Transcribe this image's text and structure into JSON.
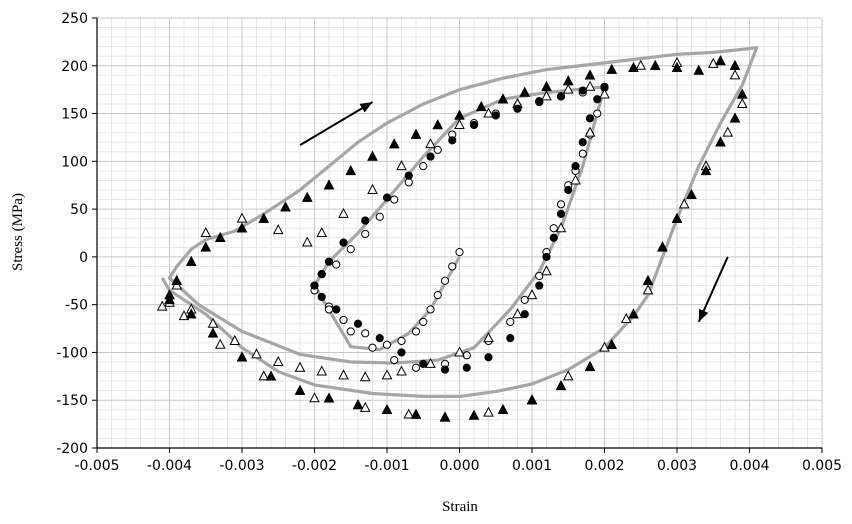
{
  "chart_data": {
    "type": "scatter",
    "title": "",
    "xlabel": "Strain",
    "ylabel": "Stress (MPa)",
    "xlim": [
      -0.005,
      0.005
    ],
    "ylim": [
      -200,
      250
    ],
    "xticks": [
      -0.005,
      -0.004,
      -0.003,
      -0.002,
      -0.001,
      0.0,
      0.001,
      0.002,
      0.003,
      0.004,
      0.005
    ],
    "xtick_labels": [
      "-0.005",
      "-0.004",
      "-0.003",
      "-0.002",
      "-0.001",
      "0.000",
      "0.001",
      "0.002",
      "0.003",
      "0.004",
      "0.005"
    ],
    "yticks": [
      -200,
      -150,
      -100,
      -50,
      0,
      50,
      100,
      150,
      200,
      250
    ],
    "ytick_labels": [
      "-200",
      "-150",
      "-100",
      "-50",
      "0",
      "50",
      "100",
      "150",
      "200",
      "250"
    ],
    "grid": true,
    "legend": "none",
    "colors": {
      "model": "#a6a6a6",
      "marker": "#000000",
      "arrow": "#000000"
    },
    "series": [
      {
        "marker": "gray-line",
        "points": [
          [
            0.0,
            0.0
          ],
          [
            -0.0004,
            -55
          ],
          [
            -0.0007,
            -80
          ],
          [
            -0.0011,
            -97
          ],
          [
            -0.0015,
            -94
          ],
          [
            -0.002,
            -30
          ],
          [
            -0.0018,
            -5
          ],
          [
            -0.0014,
            25
          ],
          [
            -0.001,
            60
          ],
          [
            -0.0005,
            105
          ],
          [
            0.0,
            145
          ],
          [
            0.0006,
            165
          ],
          [
            0.0012,
            172
          ],
          [
            0.0016,
            175
          ],
          [
            0.002,
            178
          ],
          [
            0.0017,
            95
          ],
          [
            0.0014,
            30
          ],
          [
            0.0011,
            -15
          ],
          [
            0.0007,
            -55
          ],
          [
            0.0002,
            -95
          ],
          [
            -0.0003,
            -108
          ],
          [
            -0.0009,
            -111
          ],
          [
            -0.0015,
            -110
          ],
          [
            -0.0022,
            -102
          ],
          [
            -0.003,
            -78
          ],
          [
            -0.0036,
            -50
          ],
          [
            -0.004,
            -22
          ],
          [
            -0.0039,
            -10
          ],
          [
            -0.0037,
            8
          ],
          [
            -0.0035,
            18
          ],
          [
            -0.0031,
            27
          ],
          [
            -0.0027,
            45
          ],
          [
            -0.0022,
            70
          ],
          [
            -0.0018,
            95
          ],
          [
            -0.0014,
            120
          ],
          [
            -0.001,
            140
          ],
          [
            -0.0005,
            160
          ],
          [
            0.0,
            175
          ],
          [
            0.0006,
            187
          ],
          [
            0.0012,
            196
          ],
          [
            0.002,
            203
          ],
          [
            0.003,
            212
          ],
          [
            0.0035,
            214
          ],
          [
            0.004,
            218
          ],
          [
            0.0041,
            219
          ],
          [
            0.0039,
            180
          ],
          [
            0.0036,
            140
          ],
          [
            0.0033,
            95
          ],
          [
            0.003,
            40
          ],
          [
            0.0028,
            0
          ],
          [
            0.0026,
            -40
          ],
          [
            0.0024,
            -62
          ],
          [
            0.002,
            -95
          ],
          [
            0.0015,
            -118
          ],
          [
            0.001,
            -133
          ],
          [
            0.0005,
            -141
          ],
          [
            0.0,
            -146
          ],
          [
            -0.0005,
            -146
          ],
          [
            -0.0012,
            -143
          ],
          [
            -0.002,
            -134
          ],
          [
            -0.0025,
            -120
          ],
          [
            -0.003,
            -95
          ],
          [
            -0.0035,
            -60
          ],
          [
            -0.004,
            -35
          ],
          [
            -0.0041,
            -22
          ]
        ]
      },
      {
        "marker": "open-circle",
        "points": [
          [
            0.0,
            5
          ],
          [
            -0.0001,
            -10
          ],
          [
            -0.0002,
            -25
          ],
          [
            -0.0003,
            -40
          ],
          [
            -0.0004,
            -55
          ],
          [
            -0.0005,
            -68
          ],
          [
            -0.0006,
            -78
          ],
          [
            -0.0008,
            -88
          ],
          [
            -0.001,
            -92
          ],
          [
            -0.0013,
            -80
          ],
          [
            -0.0016,
            -66
          ],
          [
            -0.0018,
            -52
          ],
          [
            -0.002,
            -30
          ],
          [
            -0.0019,
            -18
          ],
          [
            -0.0017,
            -8
          ],
          [
            -0.0015,
            8
          ],
          [
            -0.0013,
            24
          ],
          [
            -0.0011,
            42
          ],
          [
            -0.0009,
            60
          ],
          [
            -0.0007,
            78
          ],
          [
            -0.0005,
            95
          ],
          [
            -0.0003,
            112
          ],
          [
            -0.0001,
            128
          ],
          [
            0.0002,
            140
          ],
          [
            0.0005,
            150
          ],
          [
            0.0008,
            158
          ],
          [
            0.0011,
            163
          ],
          [
            0.0014,
            168
          ],
          [
            0.0017,
            172
          ],
          [
            0.002,
            177
          ],
          [
            0.0019,
            150
          ],
          [
            0.0018,
            128
          ],
          [
            0.0017,
            108
          ],
          [
            0.0016,
            90
          ],
          [
            0.0015,
            75
          ],
          [
            0.0014,
            55
          ],
          [
            0.0013,
            30
          ],
          [
            0.0012,
            5
          ],
          [
            0.0011,
            -20
          ],
          [
            0.0009,
            -45
          ],
          [
            0.0007,
            -68
          ],
          [
            0.0004,
            -88
          ],
          [
            0.0001,
            -103
          ],
          [
            -0.0002,
            -112
          ],
          [
            -0.0006,
            -116
          ],
          [
            -0.0009,
            -108
          ],
          [
            -0.0012,
            -95
          ],
          [
            -0.0015,
            -78
          ],
          [
            -0.0018,
            -55
          ],
          [
            -0.002,
            -35
          ]
        ]
      },
      {
        "marker": "open-triangle",
        "points": [
          [
            -0.004,
            -48
          ],
          [
            -0.0037,
            -55
          ],
          [
            -0.0034,
            -70
          ],
          [
            -0.0031,
            -88
          ],
          [
            -0.0028,
            -102
          ],
          [
            -0.0025,
            -110
          ],
          [
            -0.0022,
            -116
          ],
          [
            -0.0019,
            -120
          ],
          [
            -0.0016,
            -124
          ],
          [
            -0.0013,
            -126
          ],
          [
            -0.001,
            -124
          ],
          [
            -0.0008,
            -120
          ],
          [
            -0.0004,
            -112
          ],
          [
            0.0,
            -100
          ],
          [
            0.0004,
            -85
          ],
          [
            0.0008,
            -60
          ],
          [
            0.001,
            -40
          ],
          [
            0.0012,
            -15
          ],
          [
            0.0014,
            30
          ],
          [
            0.0016,
            80
          ],
          [
            0.0018,
            130
          ],
          [
            0.002,
            170
          ],
          [
            0.0018,
            178
          ],
          [
            0.0015,
            175
          ],
          [
            0.0012,
            168
          ],
          [
            0.0008,
            160
          ],
          [
            0.0004,
            150
          ],
          [
            0.0,
            138
          ],
          [
            -0.0004,
            118
          ],
          [
            -0.0008,
            95
          ],
          [
            -0.0012,
            70
          ],
          [
            -0.0016,
            45
          ],
          [
            -0.0019,
            25
          ],
          [
            -0.0021,
            15
          ],
          [
            -0.0025,
            28
          ],
          [
            -0.003,
            40
          ],
          [
            -0.0035,
            25
          ],
          [
            -0.0039,
            -30
          ],
          [
            0.0025,
            200
          ],
          [
            0.003,
            203
          ],
          [
            0.0035,
            202
          ],
          [
            0.0038,
            190
          ],
          [
            0.0039,
            160
          ],
          [
            0.0037,
            130
          ],
          [
            0.0034,
            95
          ],
          [
            0.0031,
            55
          ],
          [
            0.0028,
            10
          ],
          [
            0.0026,
            -35
          ],
          [
            0.0023,
            -65
          ],
          [
            0.002,
            -95
          ],
          [
            0.0015,
            -125
          ],
          [
            0.001,
            -150
          ],
          [
            0.0004,
            -163
          ],
          [
            -0.0002,
            -168
          ],
          [
            -0.0007,
            -165
          ],
          [
            -0.0013,
            -158
          ],
          [
            -0.002,
            -148
          ],
          [
            -0.0027,
            -125
          ],
          [
            -0.0033,
            -92
          ],
          [
            -0.0038,
            -62
          ],
          [
            -0.0041,
            -52
          ]
        ]
      },
      {
        "marker": "filled-circle",
        "points": [
          [
            -0.002,
            -30
          ],
          [
            -0.0019,
            -42
          ],
          [
            -0.0017,
            -55
          ],
          [
            -0.0014,
            -70
          ],
          [
            -0.0011,
            -85
          ],
          [
            -0.0008,
            -100
          ],
          [
            -0.0005,
            -112
          ],
          [
            -0.0002,
            -118
          ],
          [
            0.0001,
            -116
          ],
          [
            0.0004,
            -105
          ],
          [
            0.0007,
            -85
          ],
          [
            0.0009,
            -60
          ],
          [
            0.0011,
            -30
          ],
          [
            0.0012,
            0
          ],
          [
            0.0013,
            20
          ],
          [
            0.0014,
            45
          ],
          [
            0.0015,
            70
          ],
          [
            0.0016,
            95
          ],
          [
            0.0017,
            120
          ],
          [
            0.0018,
            145
          ],
          [
            0.0019,
            165
          ],
          [
            0.002,
            178
          ],
          [
            0.0017,
            174
          ],
          [
            0.0014,
            168
          ],
          [
            0.0011,
            162
          ],
          [
            0.0008,
            155
          ],
          [
            0.0005,
            148
          ],
          [
            0.0002,
            138
          ],
          [
            -0.0001,
            122
          ],
          [
            -0.0004,
            105
          ],
          [
            -0.0007,
            85
          ],
          [
            -0.001,
            62
          ],
          [
            -0.0013,
            38
          ],
          [
            -0.0016,
            15
          ],
          [
            -0.0018,
            -5
          ],
          [
            -0.0019,
            -18
          ]
        ]
      },
      {
        "marker": "filled-triangle",
        "points": [
          [
            -0.004,
            -40
          ],
          [
            -0.0039,
            -25
          ],
          [
            -0.0037,
            -5
          ],
          [
            -0.0035,
            10
          ],
          [
            -0.0033,
            20
          ],
          [
            -0.003,
            30
          ],
          [
            -0.0027,
            40
          ],
          [
            -0.0024,
            52
          ],
          [
            -0.0021,
            62
          ],
          [
            -0.0018,
            75
          ],
          [
            -0.0015,
            90
          ],
          [
            -0.0012,
            105
          ],
          [
            -0.0009,
            118
          ],
          [
            -0.0006,
            128
          ],
          [
            -0.0003,
            138
          ],
          [
            0.0,
            148
          ],
          [
            0.0003,
            157
          ],
          [
            0.0006,
            165
          ],
          [
            0.0009,
            172
          ],
          [
            0.0012,
            178
          ],
          [
            0.0015,
            184
          ],
          [
            0.0018,
            190
          ],
          [
            0.0021,
            196
          ],
          [
            0.0024,
            198
          ],
          [
            0.0027,
            200
          ],
          [
            0.003,
            198
          ],
          [
            0.0033,
            195
          ],
          [
            0.0036,
            205
          ],
          [
            0.0038,
            200
          ],
          [
            0.0039,
            170
          ],
          [
            0.0038,
            145
          ],
          [
            0.0036,
            120
          ],
          [
            0.0034,
            90
          ],
          [
            0.0032,
            65
          ],
          [
            0.003,
            40
          ],
          [
            0.0028,
            10
          ],
          [
            0.0026,
            -25
          ],
          [
            0.0024,
            -60
          ],
          [
            0.0021,
            -92
          ],
          [
            0.0018,
            -115
          ],
          [
            0.0014,
            -135
          ],
          [
            0.001,
            -150
          ],
          [
            0.0006,
            -160
          ],
          [
            0.0002,
            -166
          ],
          [
            -0.0002,
            -168
          ],
          [
            -0.0006,
            -165
          ],
          [
            -0.001,
            -160
          ],
          [
            -0.0014,
            -155
          ],
          [
            -0.0018,
            -148
          ],
          [
            -0.0022,
            -140
          ],
          [
            -0.0026,
            -125
          ],
          [
            -0.003,
            -105
          ],
          [
            -0.0034,
            -80
          ],
          [
            -0.0037,
            -60
          ],
          [
            -0.004,
            -45
          ]
        ]
      }
    ],
    "annotations": [
      {
        "type": "arrow",
        "from": [
          -0.0022,
          117
        ],
        "to": [
          -0.0012,
          162
        ]
      },
      {
        "type": "arrow",
        "from": [
          0.0037,
          0
        ],
        "to": [
          0.0033,
          -68
        ]
      }
    ]
  }
}
